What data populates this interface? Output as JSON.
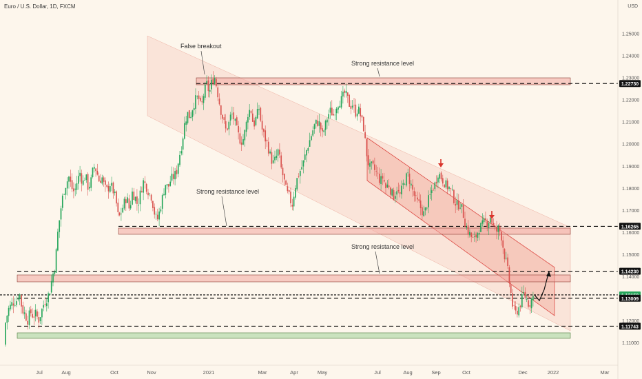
{
  "header": {
    "title": "Euro / U.S. Dollar, 1D, FXCM",
    "currency": "USD"
  },
  "chart_data": {
    "type": "candlestick",
    "symbol": "Euro / U.S. Dollar",
    "interval": "1D",
    "source": "FXCM",
    "ylim": [
      1.106,
      1.262
    ],
    "y_ticks": [
      1.11,
      1.12,
      1.13,
      1.14,
      1.15,
      1.16,
      1.17,
      1.18,
      1.19,
      1.2,
      1.21,
      1.22,
      1.23,
      1.24,
      1.25
    ],
    "x_ticks": [
      "Jul",
      "Aug",
      "Oct",
      "Nov",
      "2021",
      "Mar",
      "Apr",
      "May",
      "Jul",
      "Aug",
      "Sep",
      "Oct",
      "Dec",
      "2022",
      "Mar"
    ],
    "price_levels": [
      {
        "value": 1.2273,
        "label": "1.22730"
      },
      {
        "value": 1.16265,
        "label": "1.16265"
      },
      {
        "value": 1.1423,
        "label": "1.14230"
      },
      {
        "value": 1.13159,
        "label": "1.13159",
        "current": true
      },
      {
        "value": 1.13009,
        "label": "1.13009"
      },
      {
        "value": 1.11743,
        "label": "1.11743"
      }
    ],
    "annotations": [
      {
        "text": "False breakout"
      },
      {
        "text": "Strong resistance level"
      },
      {
        "text": "Strong resistance level"
      },
      {
        "text": "Strong resistance level"
      }
    ],
    "close_path": [
      [
        0,
        1.109
      ],
      [
        6,
        1.116
      ],
      [
        12,
        1.125
      ],
      [
        18,
        1.128
      ],
      [
        24,
        1.129
      ],
      [
        28,
        1.133
      ],
      [
        32,
        1.125
      ],
      [
        36,
        1.123
      ],
      [
        40,
        1.12
      ],
      [
        44,
        1.124
      ],
      [
        48,
        1.122
      ],
      [
        52,
        1.123
      ],
      [
        56,
        1.12
      ],
      [
        60,
        1.124
      ],
      [
        64,
        1.128
      ],
      [
        68,
        1.13
      ],
      [
        72,
        1.133
      ],
      [
        76,
        1.14
      ],
      [
        80,
        1.145
      ],
      [
        84,
        1.16
      ],
      [
        88,
        1.17
      ],
      [
        92,
        1.178
      ],
      [
        96,
        1.182
      ],
      [
        100,
        1.185
      ],
      [
        104,
        1.18
      ],
      [
        108,
        1.178
      ],
      [
        112,
        1.183
      ],
      [
        116,
        1.187
      ],
      [
        120,
        1.182
      ],
      [
        124,
        1.186
      ],
      [
        128,
        1.18
      ],
      [
        132,
        1.183
      ],
      [
        136,
        1.19
      ],
      [
        140,
        1.188
      ],
      [
        144,
        1.183
      ],
      [
        148,
        1.185
      ],
      [
        152,
        1.18
      ],
      [
        156,
        1.179
      ],
      [
        160,
        1.182
      ],
      [
        164,
        1.179
      ],
      [
        168,
        1.175
      ],
      [
        172,
        1.166
      ],
      [
        176,
        1.169
      ],
      [
        180,
        1.173
      ],
      [
        184,
        1.176
      ],
      [
        188,
        1.17
      ],
      [
        192,
        1.178
      ],
      [
        196,
        1.176
      ],
      [
        200,
        1.172
      ],
      [
        204,
        1.178
      ],
      [
        208,
        1.183
      ],
      [
        212,
        1.181
      ],
      [
        216,
        1.178
      ],
      [
        220,
        1.176
      ],
      [
        224,
        1.169
      ],
      [
        228,
        1.165
      ],
      [
        232,
        1.17
      ],
      [
        236,
        1.176
      ],
      [
        240,
        1.182
      ],
      [
        244,
        1.18
      ],
      [
        248,
        1.184
      ],
      [
        252,
        1.185
      ],
      [
        256,
        1.187
      ],
      [
        260,
        1.194
      ],
      [
        264,
        1.2
      ],
      [
        268,
        1.209
      ],
      [
        272,
        1.214
      ],
      [
        276,
        1.212
      ],
      [
        280,
        1.217
      ],
      [
        284,
        1.22
      ],
      [
        288,
        1.221
      ],
      [
        292,
        1.216
      ],
      [
        296,
        1.223
      ],
      [
        300,
        1.227
      ],
      [
        304,
        1.223
      ],
      [
        308,
        1.229
      ],
      [
        312,
        1.23
      ],
      [
        316,
        1.223
      ],
      [
        320,
        1.216
      ],
      [
        324,
        1.211
      ],
      [
        328,
        1.206
      ],
      [
        332,
        1.209
      ],
      [
        336,
        1.214
      ],
      [
        340,
        1.211
      ],
      [
        344,
        1.206
      ],
      [
        348,
        1.202
      ],
      [
        352,
        1.201
      ],
      [
        356,
        1.206
      ],
      [
        360,
        1.214
      ],
      [
        364,
        1.216
      ],
      [
        368,
        1.208
      ],
      [
        372,
        1.212
      ],
      [
        376,
        1.216
      ],
      [
        380,
        1.207
      ],
      [
        384,
        1.203
      ],
      [
        388,
        1.2
      ],
      [
        392,
        1.195
      ],
      [
        396,
        1.191
      ],
      [
        400,
        1.193
      ],
      [
        404,
        1.197
      ],
      [
        408,
        1.189
      ],
      [
        412,
        1.184
      ],
      [
        416,
        1.178
      ],
      [
        420,
        1.176
      ],
      [
        424,
        1.172
      ],
      [
        428,
        1.18
      ],
      [
        432,
        1.185
      ],
      [
        436,
        1.188
      ],
      [
        440,
        1.191
      ],
      [
        444,
        1.196
      ],
      [
        448,
        1.2
      ],
      [
        452,
        1.204
      ],
      [
        456,
        1.208
      ],
      [
        460,
        1.21
      ],
      [
        464,
        1.209
      ],
      [
        468,
        1.204
      ],
      [
        472,
        1.208
      ],
      [
        476,
        1.213
      ],
      [
        480,
        1.215
      ],
      [
        484,
        1.213
      ],
      [
        488,
        1.217
      ],
      [
        492,
        1.219
      ],
      [
        496,
        1.22
      ],
      [
        500,
        1.223
      ],
      [
        504,
        1.221
      ],
      [
        508,
        1.217
      ],
      [
        512,
        1.218
      ],
      [
        516,
        1.214
      ],
      [
        520,
        1.216
      ],
      [
        524,
        1.212
      ],
      [
        528,
        1.207
      ],
      [
        532,
        1.196
      ],
      [
        536,
        1.189
      ],
      [
        540,
        1.19
      ],
      [
        544,
        1.188
      ],
      [
        548,
        1.186
      ],
      [
        552,
        1.183
      ],
      [
        556,
        1.185
      ],
      [
        560,
        1.18
      ],
      [
        564,
        1.182
      ],
      [
        568,
        1.178
      ],
      [
        572,
        1.176
      ],
      [
        576,
        1.18
      ],
      [
        580,
        1.176
      ],
      [
        584,
        1.18
      ],
      [
        588,
        1.184
      ],
      [
        592,
        1.186
      ],
      [
        596,
        1.182
      ],
      [
        600,
        1.178
      ],
      [
        604,
        1.174
      ],
      [
        608,
        1.173
      ],
      [
        612,
        1.17
      ],
      [
        616,
        1.168
      ],
      [
        620,
        1.173
      ],
      [
        624,
        1.176
      ],
      [
        628,
        1.18
      ],
      [
        632,
        1.182
      ],
      [
        636,
        1.187
      ],
      [
        640,
        1.185
      ],
      [
        644,
        1.183
      ],
      [
        648,
        1.181
      ],
      [
        652,
        1.18
      ],
      [
        656,
        1.178
      ],
      [
        660,
        1.174
      ],
      [
        664,
        1.172
      ],
      [
        668,
        1.173
      ],
      [
        672,
        1.169
      ],
      [
        676,
        1.163
      ],
      [
        680,
        1.16
      ],
      [
        684,
        1.158
      ],
      [
        688,
        1.156
      ],
      [
        692,
        1.159
      ],
      [
        696,
        1.162
      ],
      [
        700,
        1.163
      ],
      [
        704,
        1.165
      ],
      [
        708,
        1.164
      ],
      [
        712,
        1.167
      ],
      [
        716,
        1.163
      ],
      [
        720,
        1.16
      ],
      [
        724,
        1.162
      ],
      [
        728,
        1.158
      ],
      [
        732,
        1.15
      ],
      [
        736,
        1.145
      ],
      [
        740,
        1.136
      ],
      [
        744,
        1.127
      ],
      [
        748,
        1.123
      ],
      [
        752,
        1.125
      ],
      [
        756,
        1.128
      ],
      [
        760,
        1.132
      ],
      [
        764,
        1.13
      ],
      [
        768,
        1.127
      ],
      [
        772,
        1.13
      ],
      [
        776,
        1.1316
      ]
    ],
    "projection_path": [
      [
        776,
        1.1316
      ],
      [
        783,
        1.129
      ],
      [
        790,
        1.134
      ],
      [
        797,
        1.1423
      ]
    ]
  },
  "colors": {
    "background": "#fdf6ec",
    "bull": "#26a65b",
    "bear": "#d9534f",
    "channel_fill": "#f5b8a8",
    "resistance_box": "#f2a8a0",
    "support_box": "#a9d6a0",
    "level_line": "#000000",
    "current_price_tag": "#26a65b"
  }
}
